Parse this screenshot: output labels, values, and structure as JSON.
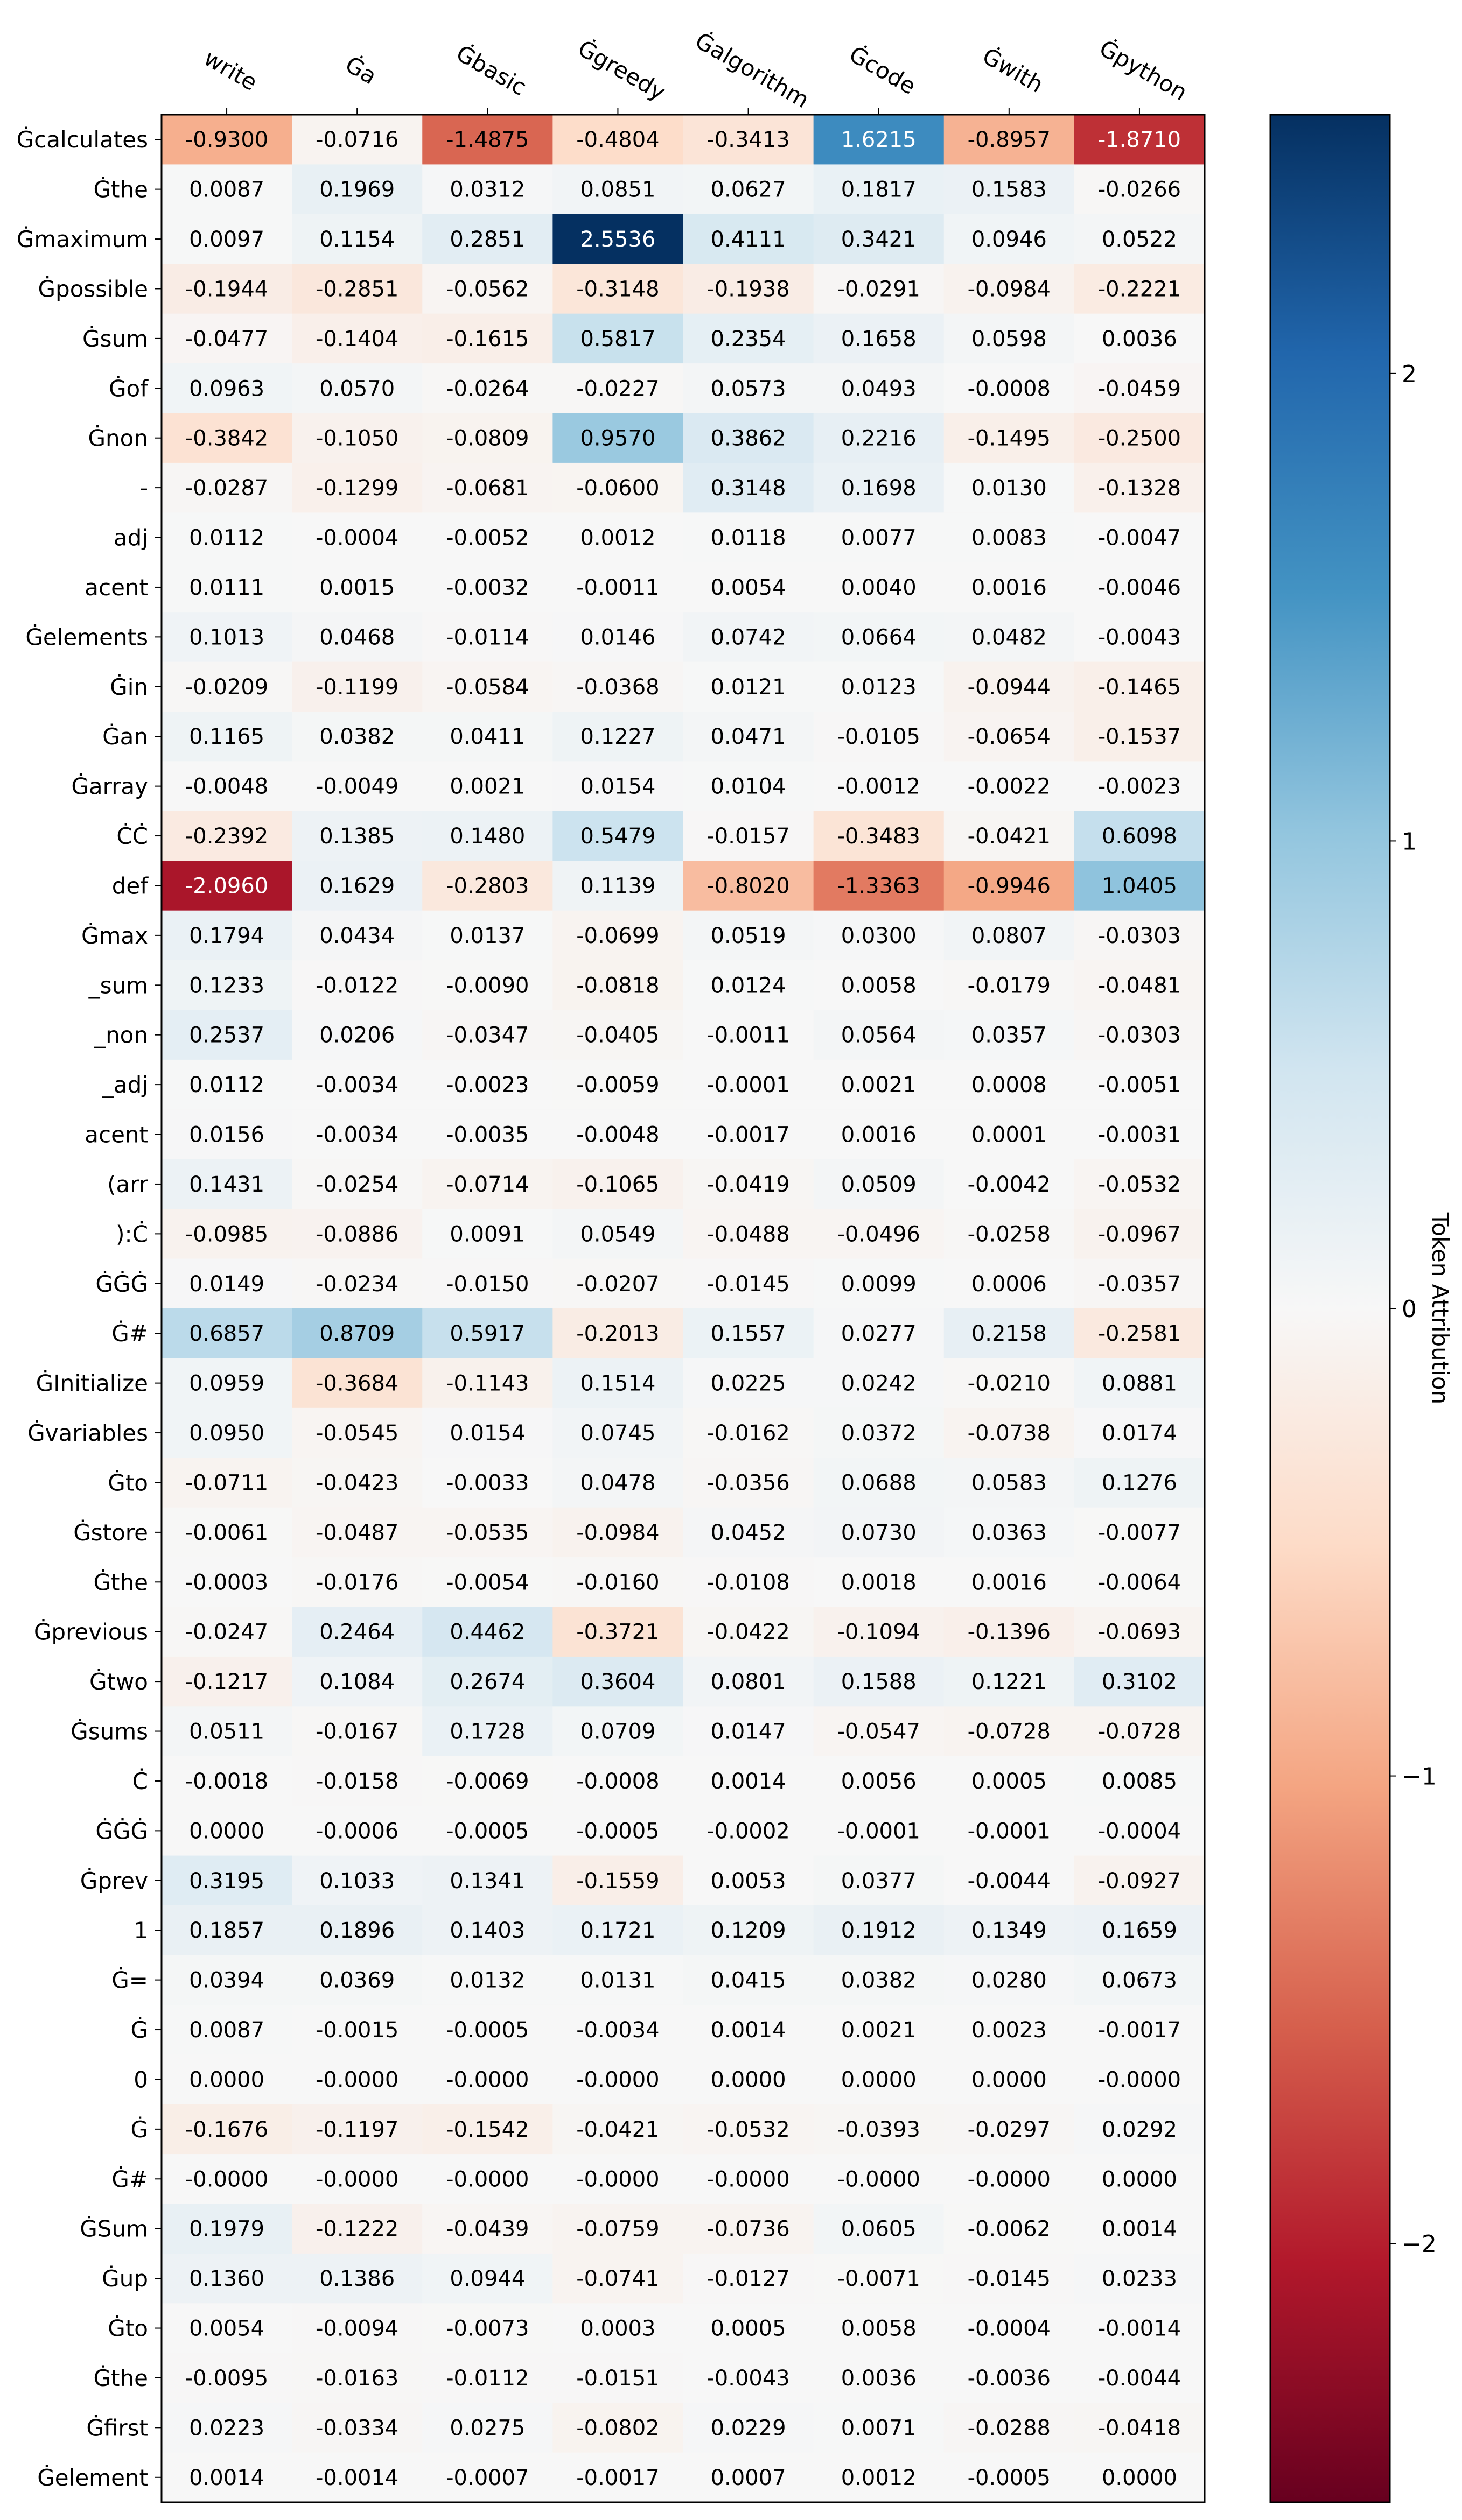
{
  "chart_data": {
    "type": "heatmap",
    "columns": [
      "write",
      "Ġa",
      "Ġbasic",
      "Ġgreedy",
      "Ġalgorithm",
      "Ġcode",
      "Ġwith",
      "Ġpython"
    ],
    "rows": [
      "Ġcalculates",
      "Ġthe",
      "Ġmaximum",
      "Ġpossible",
      "Ġsum",
      "Ġof",
      "Ġnon",
      "-",
      "adj",
      "acent",
      "Ġelements",
      "Ġin",
      "Ġan",
      "Ġarray",
      "ĊĊ",
      "def",
      "Ġmax",
      "_sum",
      "_non",
      "_adj",
      "acent",
      "(arr",
      "):Ċ",
      "ĠĠĠ",
      "Ġ#",
      "ĠInitialize",
      "Ġvariables",
      "Ġto",
      "Ġstore",
      "Ġthe",
      "Ġprevious",
      "Ġtwo",
      "Ġsums",
      "Ċ",
      "ĠĠĠ",
      "Ġprev",
      "1",
      "Ġ=",
      "Ġ",
      "0",
      "Ġ",
      "Ġ#",
      "ĠSum",
      "Ġup",
      "Ġto",
      "Ġthe",
      "Ġfirst",
      "Ġelement"
    ],
    "values": [
      [
        "-0.9300",
        "-0.0716",
        "-1.4875",
        "-0.4804",
        "-0.3413",
        "1.6215",
        "-0.8957",
        "-1.8710"
      ],
      [
        "0.0087",
        "0.1969",
        "0.0312",
        "0.0851",
        "0.0627",
        "0.1817",
        "0.1583",
        "-0.0266"
      ],
      [
        "0.0097",
        "0.1154",
        "0.2851",
        "2.5536",
        "0.4111",
        "0.3421",
        "0.0946",
        "0.0522"
      ],
      [
        "-0.1944",
        "-0.2851",
        "-0.0562",
        "-0.3148",
        "-0.1938",
        "-0.0291",
        "-0.0984",
        "-0.2221"
      ],
      [
        "-0.0477",
        "-0.1404",
        "-0.1615",
        "0.5817",
        "0.2354",
        "0.1658",
        "0.0598",
        "0.0036"
      ],
      [
        "0.0963",
        "0.0570",
        "-0.0264",
        "-0.0227",
        "0.0573",
        "0.0493",
        "-0.0008",
        "-0.0459"
      ],
      [
        "-0.3842",
        "-0.1050",
        "-0.0809",
        "0.9570",
        "0.3862",
        "0.2216",
        "-0.1495",
        "-0.2500"
      ],
      [
        "-0.0287",
        "-0.1299",
        "-0.0681",
        "-0.0600",
        "0.3148",
        "0.1698",
        "0.0130",
        "-0.1328"
      ],
      [
        "0.0112",
        "-0.0004",
        "-0.0052",
        "0.0012",
        "0.0118",
        "0.0077",
        "0.0083",
        "-0.0047"
      ],
      [
        "0.0111",
        "0.0015",
        "-0.0032",
        "-0.0011",
        "0.0054",
        "0.0040",
        "0.0016",
        "-0.0046"
      ],
      [
        "0.1013",
        "0.0468",
        "-0.0114",
        "0.0146",
        "0.0742",
        "0.0664",
        "0.0482",
        "-0.0043"
      ],
      [
        "-0.0209",
        "-0.1199",
        "-0.0584",
        "-0.0368",
        "0.0121",
        "0.0123",
        "-0.0944",
        "-0.1465"
      ],
      [
        "0.1165",
        "0.0382",
        "0.0411",
        "0.1227",
        "0.0471",
        "-0.0105",
        "-0.0654",
        "-0.1537"
      ],
      [
        "-0.0048",
        "-0.0049",
        "0.0021",
        "0.0154",
        "0.0104",
        "-0.0012",
        "-0.0022",
        "-0.0023"
      ],
      [
        "-0.2392",
        "0.1385",
        "0.1480",
        "0.5479",
        "-0.0157",
        "-0.3483",
        "-0.0421",
        "0.6098"
      ],
      [
        "-2.0960",
        "0.1629",
        "-0.2803",
        "0.1139",
        "-0.8020",
        "-1.3363",
        "-0.9946",
        "1.0405"
      ],
      [
        "0.1794",
        "0.0434",
        "0.0137",
        "-0.0699",
        "0.0519",
        "0.0300",
        "0.0807",
        "-0.0303"
      ],
      [
        "0.1233",
        "-0.0122",
        "-0.0090",
        "-0.0818",
        "0.0124",
        "0.0058",
        "-0.0179",
        "-0.0481"
      ],
      [
        "0.2537",
        "0.0206",
        "-0.0347",
        "-0.0405",
        "-0.0011",
        "0.0564",
        "0.0357",
        "-0.0303"
      ],
      [
        "0.0112",
        "-0.0034",
        "-0.0023",
        "-0.0059",
        "-0.0001",
        "0.0021",
        "0.0008",
        "-0.0051"
      ],
      [
        "0.0156",
        "-0.0034",
        "-0.0035",
        "-0.0048",
        "-0.0017",
        "0.0016",
        "0.0001",
        "-0.0031"
      ],
      [
        "0.1431",
        "-0.0254",
        "-0.0714",
        "-0.1065",
        "-0.0419",
        "0.0509",
        "-0.0042",
        "-0.0532"
      ],
      [
        "-0.0985",
        "-0.0886",
        "0.0091",
        "0.0549",
        "-0.0488",
        "-0.0496",
        "-0.0258",
        "-0.0967"
      ],
      [
        "0.0149",
        "-0.0234",
        "-0.0150",
        "-0.0207",
        "-0.0145",
        "0.0099",
        "0.0006",
        "-0.0357"
      ],
      [
        "0.6857",
        "0.8709",
        "0.5917",
        "-0.2013",
        "0.1557",
        "0.0277",
        "0.2158",
        "-0.2581"
      ],
      [
        "0.0959",
        "-0.3684",
        "-0.1143",
        "0.1514",
        "0.0225",
        "0.0242",
        "-0.0210",
        "0.0881"
      ],
      [
        "0.0950",
        "-0.0545",
        "0.0154",
        "0.0745",
        "-0.0162",
        "0.0372",
        "-0.0738",
        "0.0174"
      ],
      [
        "-0.0711",
        "-0.0423",
        "-0.0033",
        "0.0478",
        "-0.0356",
        "0.0688",
        "0.0583",
        "0.1276"
      ],
      [
        "-0.0061",
        "-0.0487",
        "-0.0535",
        "-0.0984",
        "0.0452",
        "0.0730",
        "0.0363",
        "-0.0077"
      ],
      [
        "-0.0003",
        "-0.0176",
        "-0.0054",
        "-0.0160",
        "-0.0108",
        "0.0018",
        "0.0016",
        "-0.0064"
      ],
      [
        "-0.0247",
        "0.2464",
        "0.4462",
        "-0.3721",
        "-0.0422",
        "-0.1094",
        "-0.1396",
        "-0.0693"
      ],
      [
        "-0.1217",
        "0.1084",
        "0.2674",
        "0.3604",
        "0.0801",
        "0.1588",
        "0.1221",
        "0.3102"
      ],
      [
        "0.0511",
        "-0.0167",
        "0.1728",
        "0.0709",
        "0.0147",
        "-0.0547",
        "-0.0728",
        "-0.0728"
      ],
      [
        "-0.0018",
        "-0.0158",
        "-0.0069",
        "-0.0008",
        "0.0014",
        "0.0056",
        "0.0005",
        "0.0085"
      ],
      [
        "0.0000",
        "-0.0006",
        "-0.0005",
        "-0.0005",
        "-0.0002",
        "-0.0001",
        "-0.0001",
        "-0.0004"
      ],
      [
        "0.3195",
        "0.1033",
        "0.1341",
        "-0.1559",
        "0.0053",
        "0.0377",
        "-0.0044",
        "-0.0927"
      ],
      [
        "0.1857",
        "0.1896",
        "0.1403",
        "0.1721",
        "0.1209",
        "0.1912",
        "0.1349",
        "0.1659"
      ],
      [
        "0.0394",
        "0.0369",
        "0.0132",
        "0.0131",
        "0.0415",
        "0.0382",
        "0.0280",
        "0.0673"
      ],
      [
        "0.0087",
        "-0.0015",
        "-0.0005",
        "-0.0034",
        "0.0014",
        "0.0021",
        "0.0023",
        "-0.0017"
      ],
      [
        "0.0000",
        "-0.0000",
        "-0.0000",
        "-0.0000",
        "0.0000",
        "0.0000",
        "0.0000",
        "-0.0000"
      ],
      [
        "-0.1676",
        "-0.1197",
        "-0.1542",
        "-0.0421",
        "-0.0532",
        "-0.0393",
        "-0.0297",
        "0.0292"
      ],
      [
        "-0.0000",
        "-0.0000",
        "-0.0000",
        "-0.0000",
        "-0.0000",
        "-0.0000",
        "-0.0000",
        "0.0000"
      ],
      [
        "0.1979",
        "-0.1222",
        "-0.0439",
        "-0.0759",
        "-0.0736",
        "0.0605",
        "-0.0062",
        "0.0014"
      ],
      [
        "0.1360",
        "0.1386",
        "0.0944",
        "-0.0741",
        "-0.0127",
        "-0.0071",
        "-0.0145",
        "0.0233"
      ],
      [
        "0.0054",
        "-0.0094",
        "-0.0073",
        "0.0003",
        "0.0005",
        "0.0058",
        "-0.0004",
        "-0.0014"
      ],
      [
        "-0.0095",
        "-0.0163",
        "-0.0112",
        "-0.0151",
        "-0.0043",
        "0.0036",
        "-0.0036",
        "-0.0044"
      ],
      [
        "0.0223",
        "-0.0334",
        "0.0275",
        "-0.0802",
        "0.0229",
        "0.0071",
        "-0.0288",
        "-0.0418"
      ],
      [
        "0.0014",
        "-0.0014",
        "-0.0007",
        "-0.0017",
        "0.0007",
        "0.0012",
        "-0.0005",
        "0.0000"
      ]
    ],
    "colorbar": {
      "label": "Token Attribution",
      "range": [
        -2.5536,
        2.5536
      ],
      "ticks": [
        2,
        1,
        0,
        -1,
        -2
      ],
      "tick_labels": [
        "2",
        "1",
        "0",
        "−1",
        "−2"
      ],
      "colormap": "RdBu"
    }
  }
}
